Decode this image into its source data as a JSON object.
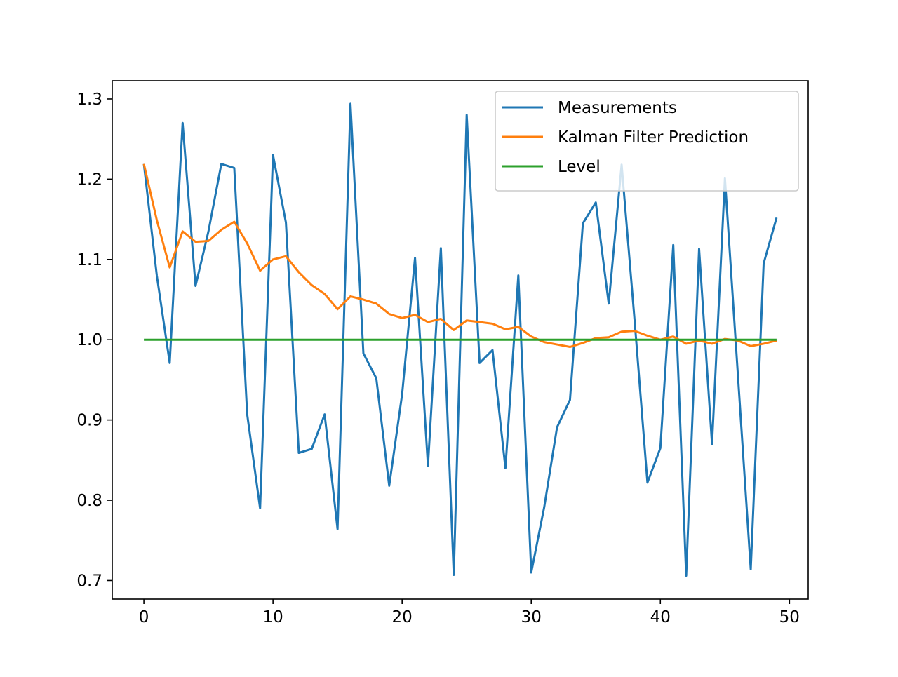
{
  "chart_data": {
    "type": "line",
    "title": "",
    "xlabel": "",
    "ylabel": "",
    "xlim": [
      -2.45,
      51.45
    ],
    "ylim": [
      0.6768,
      1.3227
    ],
    "x_ticks": [
      0,
      10,
      20,
      30,
      40,
      50
    ],
    "x_tick_labels": [
      "0",
      "10",
      "20",
      "30",
      "40",
      "50"
    ],
    "y_ticks": [
      0.7,
      0.8,
      0.9,
      1.0,
      1.1,
      1.2,
      1.3
    ],
    "y_tick_labels": [
      "0.7",
      "0.8",
      "0.9",
      "1.0",
      "1.1",
      "1.2",
      "1.3"
    ],
    "grid": false,
    "legend_position": "top-right",
    "x": [
      0,
      1,
      2,
      3,
      4,
      5,
      6,
      7,
      8,
      9,
      10,
      11,
      12,
      13,
      14,
      15,
      16,
      17,
      18,
      19,
      20,
      21,
      22,
      23,
      24,
      25,
      26,
      27,
      28,
      29,
      30,
      31,
      32,
      33,
      34,
      35,
      36,
      37,
      38,
      39,
      40,
      41,
      42,
      43,
      44,
      45,
      46,
      47,
      48,
      49
    ],
    "series": [
      {
        "name": "Measurements",
        "color": "#1f77b4",
        "values": [
          1.219,
          1.08,
          0.971,
          1.27,
          1.067,
          1.135,
          1.219,
          1.214,
          0.907,
          0.79,
          1.23,
          1.146,
          0.859,
          0.864,
          0.907,
          0.764,
          1.294,
          0.983,
          0.952,
          0.818,
          0.932,
          1.102,
          0.843,
          1.114,
          0.707,
          1.28,
          0.971,
          0.987,
          0.84,
          1.08,
          0.71,
          0.791,
          0.891,
          0.925,
          1.145,
          1.171,
          1.045,
          1.218,
          1.025,
          0.822,
          0.865,
          1.118,
          0.706,
          1.113,
          0.87,
          1.201,
          0.957,
          0.714,
          1.095,
          1.152
        ]
      },
      {
        "name": "Kalman Filter Prediction",
        "color": "#ff7f0e",
        "values": [
          1.219,
          1.149,
          1.09,
          1.135,
          1.122,
          1.123,
          1.137,
          1.147,
          1.12,
          1.086,
          1.1,
          1.104,
          1.084,
          1.068,
          1.057,
          1.038,
          1.054,
          1.05,
          1.045,
          1.032,
          1.027,
          1.031,
          1.022,
          1.026,
          1.012,
          1.024,
          1.022,
          1.02,
          1.013,
          1.016,
          1.004,
          0.997,
          0.994,
          0.991,
          0.996,
          1.002,
          1.003,
          1.01,
          1.011,
          1.005,
          1.0,
          1.004,
          0.995,
          0.999,
          0.995,
          1.001,
          0.999,
          0.992,
          0.995,
          0.999
        ]
      },
      {
        "name": "Level",
        "color": "#2ca02c",
        "values": [
          1.0,
          1.0,
          1.0,
          1.0,
          1.0,
          1.0,
          1.0,
          1.0,
          1.0,
          1.0,
          1.0,
          1.0,
          1.0,
          1.0,
          1.0,
          1.0,
          1.0,
          1.0,
          1.0,
          1.0,
          1.0,
          1.0,
          1.0,
          1.0,
          1.0,
          1.0,
          1.0,
          1.0,
          1.0,
          1.0,
          1.0,
          1.0,
          1.0,
          1.0,
          1.0,
          1.0,
          1.0,
          1.0,
          1.0,
          1.0,
          1.0,
          1.0,
          1.0,
          1.0,
          1.0,
          1.0,
          1.0,
          1.0,
          1.0,
          1.0
        ]
      }
    ]
  }
}
